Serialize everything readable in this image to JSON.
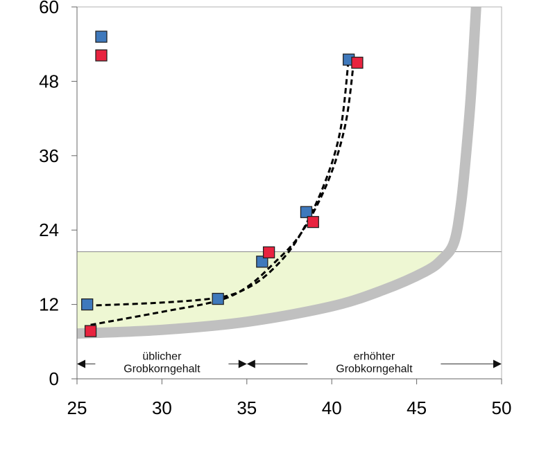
{
  "chart_data": {
    "type": "scatter",
    "xlim": [
      25,
      50
    ],
    "ylim": [
      0,
      60
    ],
    "x_ticks": [
      25,
      30,
      35,
      40,
      45,
      50
    ],
    "y_ticks": [
      0,
      12,
      24,
      36,
      48,
      60
    ],
    "grid": false,
    "legend": {
      "placement": "top-left",
      "entries": [
        {
          "color": "#3f79bc",
          "label": ""
        },
        {
          "color": "#e8233f",
          "label": ""
        }
      ]
    },
    "series": [
      {
        "color": "#3f79bc",
        "points": [
          [
            25.6,
            12.0
          ],
          [
            33.3,
            12.9
          ],
          [
            35.9,
            18.9
          ],
          [
            38.5,
            26.9
          ],
          [
            41.0,
            51.5
          ]
        ]
      },
      {
        "color": "#e8233f",
        "points": [
          [
            25.8,
            7.7
          ],
          [
            36.3,
            20.4
          ],
          [
            38.9,
            25.3
          ],
          [
            41.5,
            51.0
          ]
        ]
      }
    ],
    "fits": [
      {
        "style": "dashed",
        "points": [
          [
            25.6,
            11.8
          ],
          [
            30,
            12.3
          ],
          [
            33.3,
            13.1
          ],
          [
            35,
            14.6
          ],
          [
            36.5,
            17.6
          ],
          [
            38,
            22.6
          ],
          [
            39.5,
            31
          ],
          [
            40.5,
            40
          ],
          [
            41,
            51.8
          ]
        ]
      },
      {
        "style": "dashed",
        "points": [
          [
            25.8,
            8.7
          ],
          [
            30,
            10.8
          ],
          [
            33.3,
            12.6
          ],
          [
            35,
            14.8
          ],
          [
            36.5,
            18.4
          ],
          [
            38.2,
            23.5
          ],
          [
            39.8,
            32
          ],
          [
            40.8,
            41
          ],
          [
            41.3,
            51.3
          ]
        ]
      }
    ],
    "boundary_curve": {
      "color": "#c0c0c0",
      "points": [
        [
          25,
          7.3
        ],
        [
          30,
          7.9
        ],
        [
          35,
          9.2
        ],
        [
          40,
          11.7
        ],
        [
          43,
          14.3
        ],
        [
          45.5,
          17.3
        ],
        [
          46.5,
          19.3
        ],
        [
          47.2,
          22
        ],
        [
          47.6,
          28
        ],
        [
          47.9,
          36
        ],
        [
          48.2,
          46
        ],
        [
          48.5,
          60
        ]
      ]
    },
    "threshold_y": 20.5,
    "region_fill": "#eef7d3",
    "annotations": [
      {
        "text_lines": [
          "üblicher",
          "Grobkorngehalt"
        ],
        "x_range": [
          25,
          35
        ],
        "y": 2.4
      },
      {
        "text_lines": [
          "erhöhter",
          "Grobkorngehalt"
        ],
        "x_range": [
          35,
          50
        ],
        "y": 2.4
      }
    ]
  }
}
